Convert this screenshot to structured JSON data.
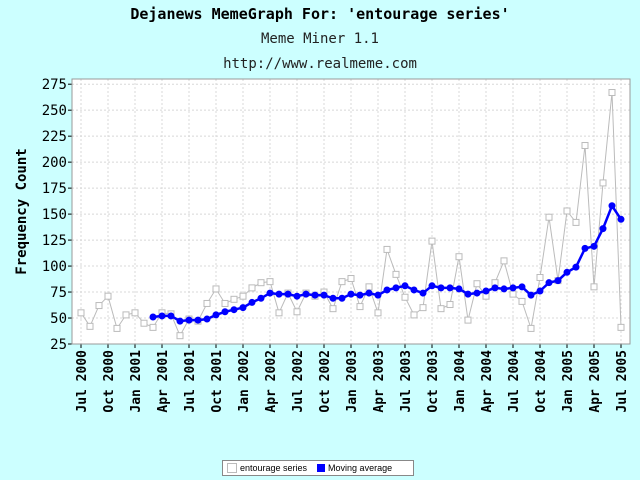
{
  "header": {
    "title": "Dejanews MemeGraph For: 'entourage series'",
    "subtitle": "Meme Miner 1.1",
    "url": "http://www.realmeme.com"
  },
  "chart_data": {
    "type": "line",
    "ylabel": "Frequency Count",
    "ylim": [
      25,
      280
    ],
    "yticks": [
      25,
      50,
      75,
      100,
      125,
      150,
      175,
      200,
      225,
      250,
      275
    ],
    "grid": true,
    "xtick_labels": [
      "Jul 2000",
      "Oct 2000",
      "Jan 2001",
      "Apr 2001",
      "Jul 2001",
      "Oct 2001",
      "Jan 2002",
      "Apr 2002",
      "Jul 2002",
      "Oct 2002",
      "Jan 2003",
      "Apr 2003",
      "Jul 2003",
      "Oct 2003",
      "Jan 2004",
      "Apr 2004",
      "Jul 2004",
      "Oct 2004",
      "Jan 2005",
      "Apr 2005",
      "Jul 2005"
    ],
    "series": [
      {
        "name": "entourage series",
        "color": "#bbbbbb",
        "marker": "hollow-square",
        "start_index": 0,
        "values": [
          55,
          42,
          62,
          71,
          40,
          53,
          55,
          45,
          41,
          55,
          54,
          33,
          49,
          47,
          64,
          78,
          64,
          68,
          71,
          79,
          84,
          85,
          55,
          74,
          56,
          74,
          71,
          75,
          59,
          85,
          88,
          61,
          80,
          55,
          116,
          92,
          70,
          53,
          60,
          124,
          59,
          63,
          109,
          48,
          83,
          71,
          84,
          105,
          73,
          66,
          40,
          89,
          147,
          86,
          153,
          142,
          216,
          80,
          180,
          267,
          41
        ]
      },
      {
        "name": "Moving average",
        "color": "#0000ff",
        "marker": "filled-circle",
        "start_index": 8,
        "values": [
          51,
          52,
          52,
          47,
          48,
          48,
          49,
          53,
          56,
          58,
          60,
          65,
          69,
          74,
          73,
          73,
          71,
          73,
          72,
          72,
          69,
          69,
          73,
          72,
          74,
          72,
          77,
          79,
          81,
          77,
          74,
          81,
          79,
          79,
          78,
          73,
          74,
          76,
          79,
          78,
          79,
          80,
          72,
          76,
          84,
          86,
          94,
          99,
          117,
          119,
          136,
          158,
          145
        ]
      }
    ]
  },
  "legend": {
    "items": [
      "entourage series",
      "Moving average"
    ]
  }
}
